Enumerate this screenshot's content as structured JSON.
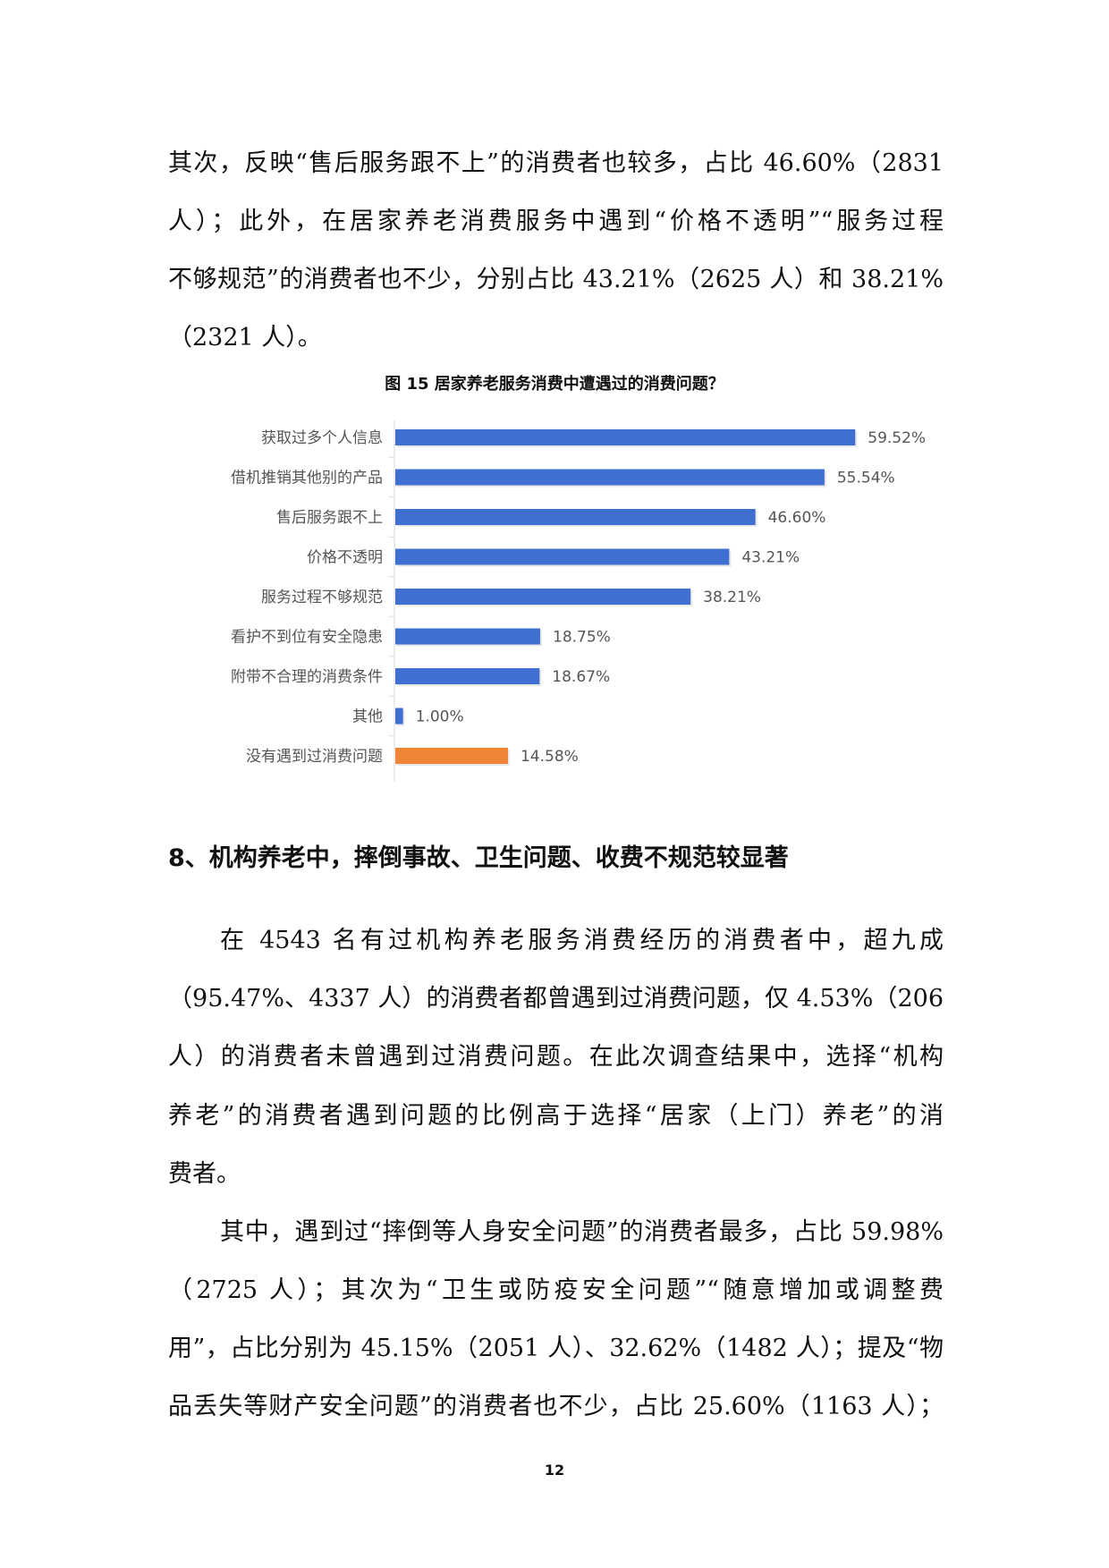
{
  "para1": [
    "其次，反映“售后服务跟不上”的消费者也较多，占比 46.60%（2831",
    "人）；此外，在居家养老消费服务中遇到“价格不透明”“服务过程",
    "不够规范”的消费者也不少，分别占比 43.21%（2625 人）和 38.21%",
    "（2321 人）。"
  ],
  "chart_data": {
    "type": "bar",
    "orientation": "horizontal",
    "title": "图 15  居家养老服务消费中遭遇过的消费问题？",
    "categories": [
      "获取过多个人信息",
      "借机推销其他别的产品",
      "售后服务跟不上",
      "价格不透明",
      "服务过程不够规范",
      "看护不到位有安全隐患",
      "附带不合理的消费条件",
      "其他",
      "没有遇到过消费问题"
    ],
    "values": [
      59.52,
      55.54,
      46.6,
      43.21,
      38.21,
      18.75,
      18.67,
      1.0,
      14.58
    ],
    "labels": [
      "59.52%",
      "55.54%",
      "46.60%",
      "43.21%",
      "38.21%",
      "18.75%",
      "18.67%",
      "1.00%",
      "14.58%"
    ],
    "colors": [
      "#3f6fd0",
      "#3f6fd0",
      "#3f6fd0",
      "#3f6fd0",
      "#3f6fd0",
      "#3f6fd0",
      "#3f6fd0",
      "#3f6fd0",
      "#ed8535"
    ],
    "grid": false,
    "legend": "none"
  },
  "heading8": "8、机构养老中，摔倒事故、卫生问题、收费不规范较显著",
  "para2": [
    "在 4543 名有过机构养老服务消费经历的消费者中，超九成",
    "（95.47%、4337 人）的消费者都曾遇到过消费问题，仅 4.53%（206",
    "人）的消费者未曾遇到过消费问题。在此次调查结果中，选择“机构",
    "养老”的消费者遇到问题的比例高于选择“居家（上门）养老”的消",
    "费者。"
  ],
  "para3": [
    "其中，遇到过“摔倒等人身安全问题”的消费者最多，占比 59.98%",
    "（2725 人）；其次为“卫生或防疫安全问题”“随意增加或调整费",
    "用”，占比分别为 45.15%（2051 人）、32.62%（1482 人）；提及“物",
    "品丢失等财产安全问题”的消费者也不少，占比 25.60%（1163 人）；"
  ],
  "page_number": "12"
}
